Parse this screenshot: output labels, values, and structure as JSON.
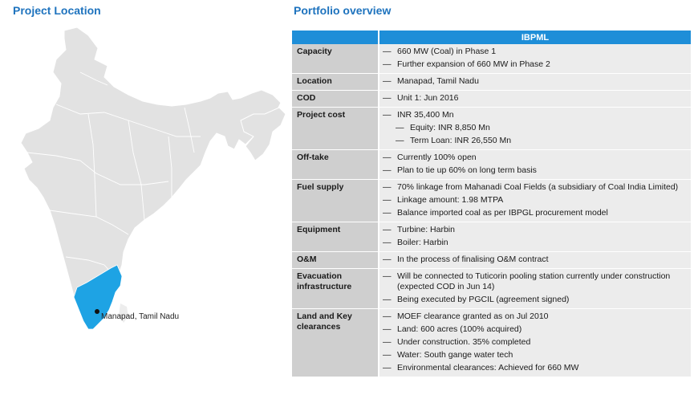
{
  "titles": {
    "left": "Project Location",
    "right": "Portfolio overview"
  },
  "map": {
    "marker_label": "Manapad, Tamil Nadu",
    "highlight_color": "#1ea3e4",
    "base_color": "#e2e2e2"
  },
  "table": {
    "header": "IBPML",
    "dash": "—",
    "rows": [
      {
        "label": "Capacity",
        "items": [
          {
            "text": "660 MW (Coal) in Phase 1"
          },
          {
            "text": "Further expansion of 660 MW in Phase 2"
          }
        ]
      },
      {
        "label": "Location",
        "items": [
          {
            "text": "Manapad, Tamil Nadu"
          }
        ]
      },
      {
        "label": "COD",
        "items": [
          {
            "text": "Unit 1: Jun 2016"
          }
        ]
      },
      {
        "label": "Project cost",
        "items": [
          {
            "text": "INR 35,400 Mn"
          },
          {
            "text": "Equity: INR 8,850 Mn",
            "sub": true
          },
          {
            "text": "Term Loan: INR 26,550 Mn",
            "sub": true
          }
        ]
      },
      {
        "label": "Off-take",
        "items": [
          {
            "text": "Currently 100% open"
          },
          {
            "text": "Plan to tie up 60% on long term basis"
          }
        ]
      },
      {
        "label": "Fuel supply",
        "items": [
          {
            "text": "70% linkage from Mahanadi Coal Fields (a subsidiary of Coal India Limited)"
          },
          {
            "text": "Linkage amount: 1.98 MTPA"
          },
          {
            "text": "Balance imported coal as per IBPGL  procurement model"
          }
        ]
      },
      {
        "label": "Equipment",
        "items": [
          {
            "text": "Turbine: Harbin"
          },
          {
            "text": "Boiler: Harbin"
          }
        ]
      },
      {
        "label": "O&M",
        "items": [
          {
            "text": "In the process of finalising O&M contract"
          }
        ]
      },
      {
        "label": "Evacuation infrastructure",
        "items": [
          {
            "text": "Will be connected to Tuticorin pooling station currently under construction (expected COD in Jun 14)"
          },
          {
            "text": "Being executed by PGCIL (agreement signed)"
          }
        ]
      },
      {
        "label": "Land and Key clearances",
        "items": [
          {
            "text": "MOEF clearance granted as on Jul 2010"
          },
          {
            "text": "Land: 600 acres (100% acquired)"
          },
          {
            "text": "Under construction. 35% completed"
          },
          {
            "text": "Water: South gange water tech"
          },
          {
            "text": "Environmental clearances: Achieved for 660 MW"
          }
        ]
      }
    ]
  }
}
